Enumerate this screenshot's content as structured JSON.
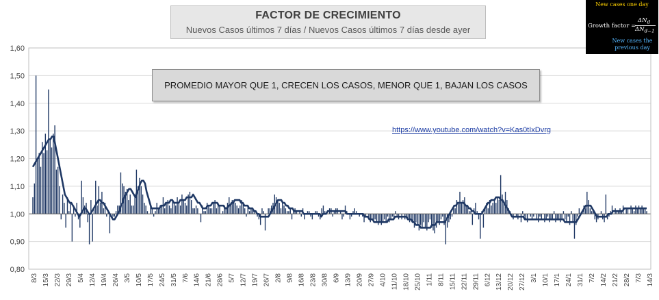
{
  "header": {
    "title": "FACTOR DE CRECIMIENTO",
    "subtitle": "Nuevos Casos últimos 7 días / Nuevos Casos últimos 7 días desde ayer"
  },
  "annotation_box": {
    "text": "PROMEDIO MAYOR QUE 1, CRECEN LOS CASOS, MENOR QUE 1, BAJAN LOS CASOS"
  },
  "link": {
    "text": "https://www.youtube.com/watch?v=Kas0tIxDvrg"
  },
  "formula": {
    "top_note": "New cases one day",
    "label": "Growth factor =",
    "numerator": "ΔN",
    "numerator_sub": "d",
    "denominator": "ΔN",
    "denominator_sub": "d−1",
    "bottom_note": "New cases the previous day"
  },
  "colors": {
    "bar": "#1f3864",
    "line": "#1f3864",
    "grid": "#d9d9d9",
    "title_box": "#e7e7e7",
    "note_box": "#d9d9d9",
    "formula_bg": "#000000",
    "formula_top": "#ffd100",
    "formula_bottom": "#55b7ff"
  },
  "chart_data": {
    "type": "bar",
    "baseline": 1.0,
    "ylim": [
      0.8,
      1.6
    ],
    "yticks": [
      "0,80",
      "0,90",
      "1,00",
      "1,10",
      "1,20",
      "1,30",
      "1,40",
      "1,50",
      "1,60"
    ],
    "ytick_values": [
      0.8,
      0.9,
      1.0,
      1.1,
      1.2,
      1.3,
      1.4,
      1.5,
      1.6
    ],
    "grid": true,
    "xtick_labels": [
      "8/3",
      "15/3",
      "22/3",
      "29/3",
      "5/4",
      "12/4",
      "19/4",
      "26/4",
      "3/5",
      "10/5",
      "17/5",
      "24/5",
      "31/5",
      "7/6",
      "14/6",
      "21/6",
      "28/6",
      "5/7",
      "12/7",
      "19/7",
      "26/7",
      "2/8",
      "9/8",
      "16/8",
      "23/8",
      "30/8",
      "6/9",
      "13/9",
      "20/9",
      "27/9",
      "4/10",
      "11/10",
      "18/10",
      "25/10",
      "1/11",
      "8/11",
      "15/11",
      "22/11",
      "29/11",
      "6/12",
      "13/12",
      "20/12",
      "27/12",
      "3/1",
      "10/1",
      "17/1",
      "24/1",
      "31/1",
      "7/2",
      "14/2",
      "21/2",
      "28/2",
      "7/3",
      "14/3"
    ],
    "series": [
      {
        "kind": "bar",
        "values": [
          1.06,
          1.11,
          1.5,
          1.2,
          1.22,
          1.17,
          1.26,
          1.22,
          1.29,
          1.23,
          1.45,
          1.27,
          1.24,
          1.29,
          1.32,
          1.16,
          1.17,
          1.1,
          0.98,
          1.07,
          1.04,
          0.95,
          1.06,
          1.01,
          1.04,
          0.9,
          1.03,
          0.99,
          1.04,
          0.98,
          0.95,
          1.12,
          1.06,
          1.03,
          1.04,
          0.97,
          0.89,
          1.05,
          0.9,
          1.02,
          1.12,
          1.03,
          1.1,
          1.04,
          1.08,
          1.02,
          1.04,
          0.99,
          1.01,
          0.93,
          1.0,
          0.99,
          0.99,
          1.01,
          1.03,
          1.03,
          1.15,
          1.11,
          1.1,
          1.08,
          1.09,
          1.05,
          1.07,
          1.03,
          1.03,
          1.06,
          1.16,
          1.1,
          1.13,
          1.1,
          1.07,
          1.04,
          1.03,
          1.01,
          1.0,
          1.03,
          1.02,
          0.99,
          1.01,
          1.04,
          1.02,
          1.03,
          1.03,
          1.06,
          1.02,
          1.04,
          1.05,
          1.03,
          1.02,
          1.05,
          1.04,
          1.03,
          1.06,
          1.04,
          1.03,
          1.07,
          1.05,
          1.04,
          1.03,
          1.07,
          1.08,
          1.05,
          1.02,
          1.02,
          1.03,
          1.02,
          1.0,
          0.97,
          1.03,
          1.01,
          1.01,
          1.04,
          1.03,
          1.02,
          1.02,
          1.04,
          1.05,
          1.02,
          1.04,
          1.03,
          1.0,
          1.01,
          1.03,
          1.02,
          1.04,
          1.06,
          1.03,
          1.05,
          1.05,
          1.04,
          1.03,
          1.02,
          1.03,
          1.05,
          1.04,
          1.02,
          0.99,
          1.03,
          1.01,
          1.02,
          1.02,
          1.01,
          1.0,
          0.99,
          0.98,
          0.96,
          1.02,
          1.01,
          0.94,
          1.0,
          1.02,
          1.02,
          1.03,
          1.04,
          1.07,
          1.06,
          1.05,
          1.04,
          1.02,
          1.04,
          1.03,
          1.02,
          1.01,
          1.01,
          1.02,
          0.98,
          1.01,
          1.02,
          1.01,
          1.0,
          1.01,
          0.99,
          1.02,
          0.98,
          1.0,
          1.01,
          1.01,
          0.99,
          0.98,
          1.0,
          1.01,
          1.01,
          0.99,
          0.98,
          1.02,
          1.03,
          1.01,
          1.0,
          1.0,
          1.02,
          1.02,
          0.99,
          1.01,
          1.02,
          1.02,
          1.0,
          1.01,
          0.98,
          0.99,
          1.03,
          1.01,
          1.0,
          0.98,
          0.99,
          1.01,
          1.02,
          1.01,
          1.0,
          0.99,
          1.0,
          0.99,
          0.97,
          0.99,
          1.0,
          0.98,
          0.97,
          0.98,
          0.97,
          0.98,
          0.97,
          0.96,
          0.97,
          0.96,
          0.97,
          0.98,
          0.97,
          0.99,
          0.97,
          0.98,
          0.99,
          0.98,
          1.01,
          0.99,
          0.98,
          1.0,
          0.98,
          1.0,
          0.98,
          0.99,
          0.98,
          0.97,
          0.98,
          0.97,
          0.95,
          0.97,
          0.96,
          0.94,
          0.96,
          0.95,
          0.97,
          0.95,
          0.94,
          0.97,
          0.98,
          0.95,
          0.94,
          0.93,
          0.95,
          0.97,
          0.96,
          0.98,
          0.99,
          0.96,
          0.89,
          0.95,
          0.97,
          0.98,
          0.99,
          1.03,
          1.02,
          1.05,
          1.04,
          1.08,
          1.04,
          1.05,
          1.06,
          1.03,
          1.03,
          1.01,
          1.01,
          0.96,
          1.02,
          1.04,
          1.01,
          0.98,
          0.91,
          1.01,
          0.95,
          1.02,
          1.04,
          1.02,
          1.05,
          1.03,
          1.04,
          1.05,
          1.04,
          1.06,
          1.05,
          1.14,
          1.07,
          1.04,
          1.08,
          1.05,
          1.02,
          1.01,
          0.99,
          0.98,
          1.0,
          0.99,
          0.98,
          1.0,
          0.97,
          1.01,
          0.99,
          0.98,
          0.97,
          1.0,
          0.99,
          0.98,
          0.99,
          1.0,
          0.98,
          0.97,
          0.99,
          0.98,
          1.0,
          0.97,
          0.98,
          0.99,
          0.97,
          0.98,
          0.98,
          1.01,
          0.97,
          0.98,
          0.98,
          0.97,
          0.98,
          1.01,
          0.98,
          0.97,
          0.99,
          0.96,
          1.01,
          0.97,
          0.91,
          0.96,
          0.99,
          1.02,
          1.0,
          1.01,
          1.03,
          1.02,
          1.08,
          1.05,
          1.02,
          1.01,
          1.01,
          0.98,
          0.97,
          0.98,
          1.0,
          1.01,
          0.98,
          0.97,
          1.07,
          0.98,
          0.99,
          1.01,
          1.03,
          1.0,
          1.02,
          1.01,
          1.01,
          1.02,
          1.01,
          1.03,
          1.0,
          1.02,
          1.02,
          1.0,
          1.03,
          1.02,
          1.01,
          1.03,
          1.02,
          1.03,
          1.02,
          1.03,
          1.02,
          1.02,
          1.01
        ]
      },
      {
        "kind": "line",
        "values": [
          1.17,
          1.18,
          1.19,
          1.2,
          1.21,
          1.22,
          1.23,
          1.24,
          1.25,
          1.26,
          1.27,
          1.27,
          1.28,
          1.28,
          1.25,
          1.22,
          1.19,
          1.16,
          1.13,
          1.1,
          1.07,
          1.06,
          1.05,
          1.04,
          1.04,
          1.03,
          1.02,
          1.01,
          1.0,
          0.99,
          1.0,
          1.01,
          1.02,
          1.02,
          1.01,
          1.0,
          1.0,
          1.01,
          1.02,
          1.03,
          1.04,
          1.05,
          1.05,
          1.04,
          1.04,
          1.03,
          1.02,
          1.01,
          1.0,
          0.99,
          0.98,
          0.98,
          0.99,
          1.0,
          1.01,
          1.03,
          1.04,
          1.06,
          1.07,
          1.08,
          1.09,
          1.09,
          1.08,
          1.07,
          1.06,
          1.08,
          1.09,
          1.11,
          1.12,
          1.12,
          1.11,
          1.08,
          1.06,
          1.04,
          1.02,
          1.02,
          1.02,
          1.02,
          1.02,
          1.02,
          1.03,
          1.03,
          1.03,
          1.04,
          1.04,
          1.04,
          1.05,
          1.05,
          1.04,
          1.04,
          1.04,
          1.04,
          1.05,
          1.05,
          1.05,
          1.05,
          1.06,
          1.06,
          1.06,
          1.06,
          1.07,
          1.06,
          1.05,
          1.04,
          1.04,
          1.03,
          1.02,
          1.02,
          1.02,
          1.03,
          1.03,
          1.03,
          1.04,
          1.04,
          1.04,
          1.04,
          1.03,
          1.03,
          1.03,
          1.03,
          1.02,
          1.02,
          1.03,
          1.03,
          1.04,
          1.04,
          1.05,
          1.05,
          1.05,
          1.05,
          1.04,
          1.04,
          1.03,
          1.03,
          1.03,
          1.02,
          1.02,
          1.02,
          1.01,
          1.01,
          1.0,
          1.0,
          0.99,
          0.99,
          0.99,
          0.99,
          0.99,
          0.99,
          1.0,
          1.01,
          1.02,
          1.03,
          1.04,
          1.05,
          1.05,
          1.05,
          1.04,
          1.04,
          1.03,
          1.03,
          1.02,
          1.02,
          1.02,
          1.01,
          1.01,
          1.01,
          1.01,
          1.01,
          1.01,
          1.0,
          1.0,
          1.0,
          1.0,
          1.0,
          1.0,
          1.0,
          1.0,
          1.0,
          1.0,
          1.0,
          0.99,
          1.0,
          1.0,
          1.0,
          1.01,
          1.01,
          1.01,
          1.01,
          1.01,
          1.01,
          1.01,
          1.01,
          1.01,
          1.01,
          1.01,
          1.01,
          1.0,
          1.0,
          1.0,
          1.0,
          1.0,
          1.0,
          1.0,
          1.0,
          1.0,
          1.0,
          1.0,
          0.99,
          0.99,
          0.99,
          0.98,
          0.98,
          0.98,
          0.97,
          0.97,
          0.97,
          0.97,
          0.97,
          0.97,
          0.97,
          0.97,
          0.97,
          0.98,
          0.98,
          0.98,
          0.98,
          0.99,
          0.99,
          0.99,
          0.99,
          0.99,
          0.99,
          0.99,
          0.99,
          0.98,
          0.98,
          0.98,
          0.97,
          0.97,
          0.96,
          0.96,
          0.96,
          0.95,
          0.95,
          0.95,
          0.95,
          0.95,
          0.95,
          0.95,
          0.96,
          0.96,
          0.96,
          0.97,
          0.97,
          0.97,
          0.97,
          0.97,
          0.97,
          0.98,
          0.99,
          1.0,
          1.01,
          1.02,
          1.03,
          1.03,
          1.04,
          1.04,
          1.04,
          1.04,
          1.04,
          1.03,
          1.03,
          1.02,
          1.02,
          1.01,
          1.01,
          1.0,
          1.0,
          1.0,
          1.0,
          1.0,
          1.01,
          1.02,
          1.03,
          1.04,
          1.04,
          1.05,
          1.05,
          1.05,
          1.06,
          1.06,
          1.06,
          1.05,
          1.05,
          1.04,
          1.03,
          1.02,
          1.01,
          1.0,
          0.99,
          0.99,
          0.99,
          0.99,
          0.99,
          0.99,
          0.99,
          0.99,
          0.98,
          0.98,
          0.98,
          0.98,
          0.98,
          0.98,
          0.98,
          0.98,
          0.98,
          0.98,
          0.98,
          0.98,
          0.98,
          0.98,
          0.98,
          0.98,
          0.98,
          0.98,
          0.98,
          0.98,
          0.98,
          0.98,
          0.98,
          0.98,
          0.98,
          0.97,
          0.97,
          0.97,
          0.97,
          0.97,
          0.97,
          0.97,
          0.97,
          0.98,
          0.99,
          1.0,
          1.01,
          1.02,
          1.03,
          1.03,
          1.03,
          1.03,
          1.02,
          1.01,
          1.0,
          0.99,
          0.99,
          0.99,
          0.99,
          0.99,
          0.99,
          0.99,
          1.0,
          1.0,
          1.0,
          1.01,
          1.01,
          1.01,
          1.01,
          1.01,
          1.01,
          1.01,
          1.02,
          1.02,
          1.02,
          1.02,
          1.02,
          1.02,
          1.02,
          1.02,
          1.02,
          1.02,
          1.02,
          1.02,
          1.02,
          1.02,
          1.02
        ]
      }
    ]
  }
}
